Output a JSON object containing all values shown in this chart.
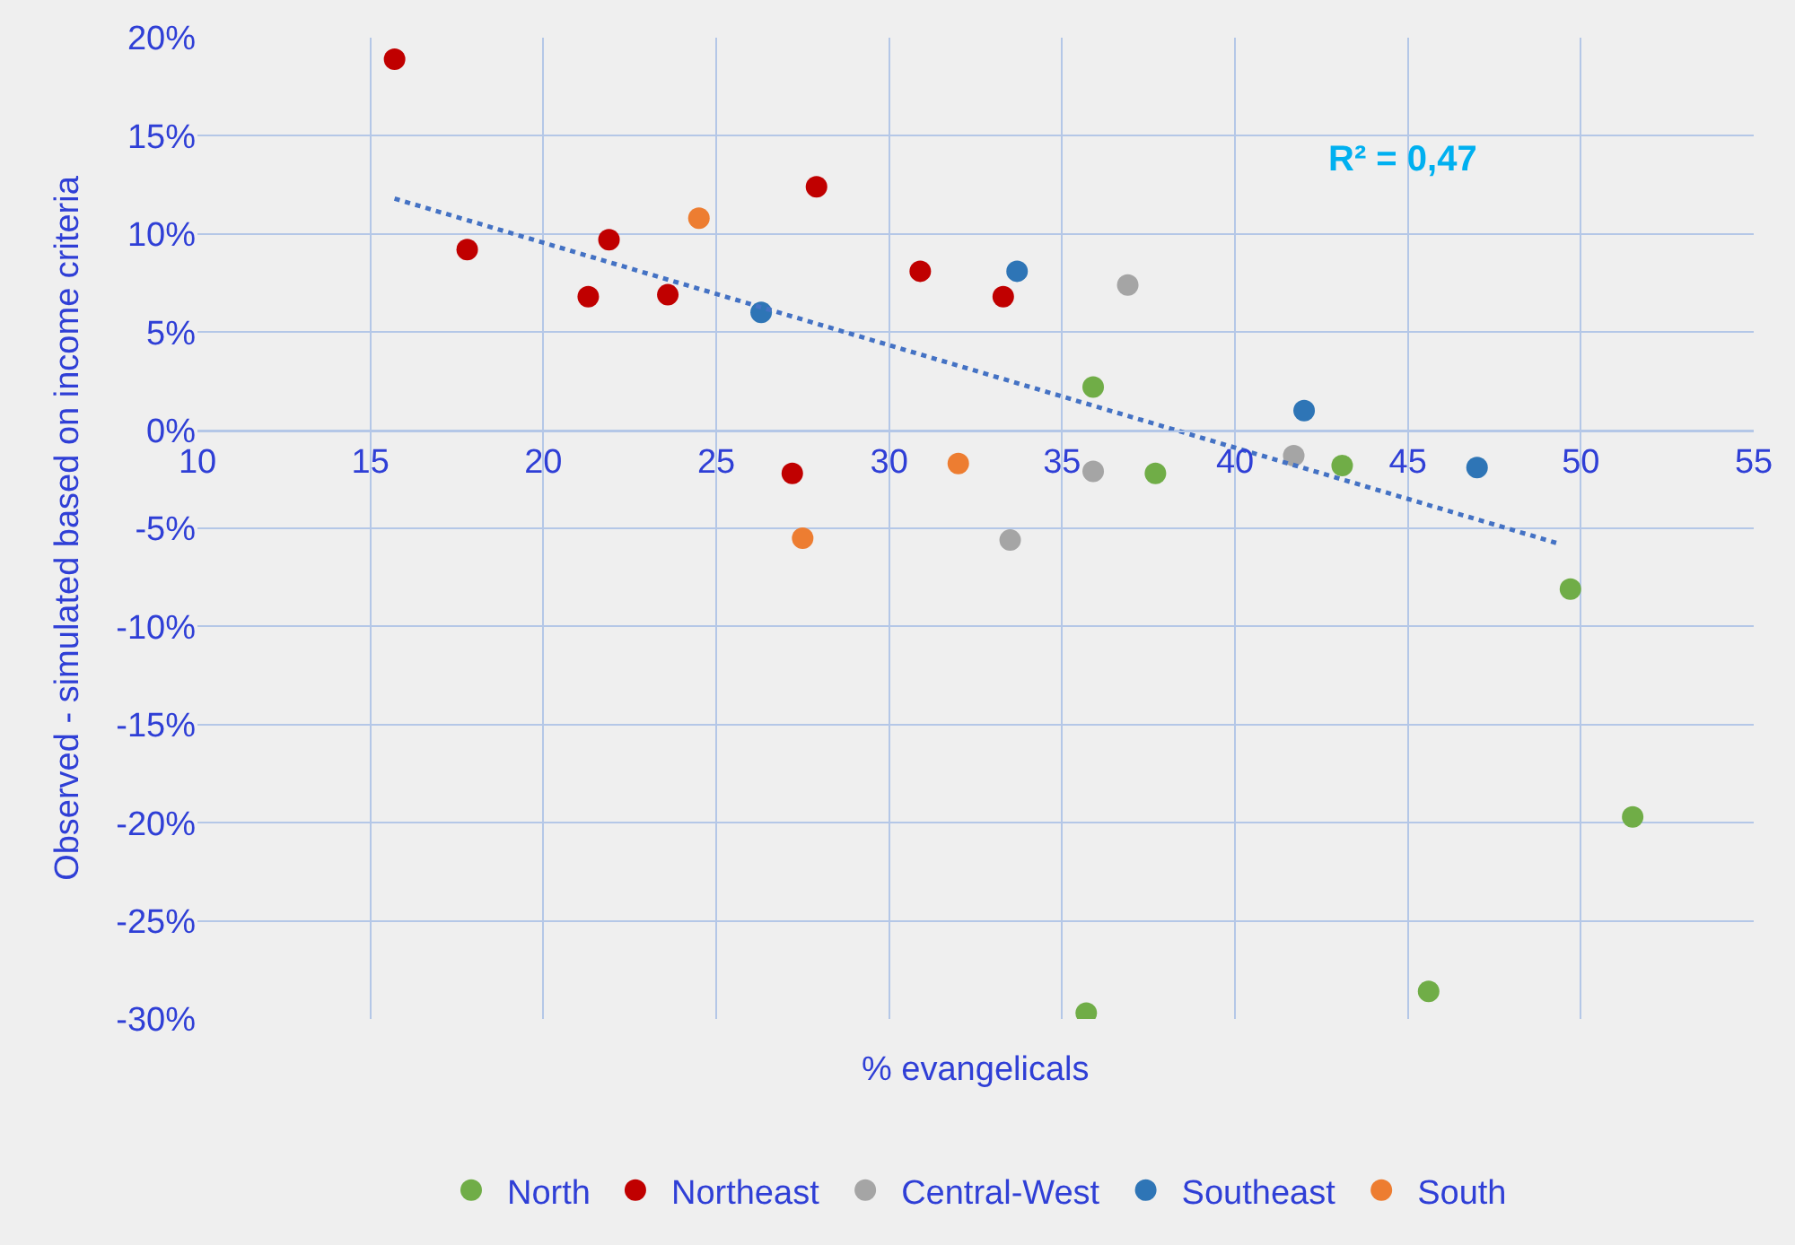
{
  "chart_data": {
    "type": "scatter",
    "xlabel": "% evangelicals",
    "ylabel": "Observed - simulated based on income criteria",
    "xlim": [
      10,
      55
    ],
    "xticks": [
      10,
      15,
      20,
      25,
      30,
      35,
      40,
      45,
      50,
      55
    ],
    "ylim": [
      -30,
      20
    ],
    "yticks": [
      {
        "value": -30,
        "label": "-30%"
      },
      {
        "value": -25,
        "label": "-25%"
      },
      {
        "value": -20,
        "label": "-20%"
      },
      {
        "value": -15,
        "label": "-15%"
      },
      {
        "value": -10,
        "label": "-10%"
      },
      {
        "value": -5,
        "label": "-5%"
      },
      {
        "value": 0,
        "label": "0%"
      },
      {
        "value": 5,
        "label": "5%"
      },
      {
        "value": 10,
        "label": "10%"
      },
      {
        "value": 15,
        "label": "15%"
      },
      {
        "value": 20,
        "label": "20%"
      }
    ],
    "grid": true,
    "legend": "bottom",
    "marker": "circle",
    "series": [
      {
        "name": "North",
        "color": "#70ad47",
        "x": [
          35.9,
          37.7,
          43.1,
          49.7,
          51.5,
          45.6,
          35.7
        ],
        "values": [
          2.2,
          -2.2,
          -1.8,
          -8.1,
          -19.7,
          -28.6,
          -29.7
        ]
      },
      {
        "name": "Northeast",
        "color": "#c00000",
        "x": [
          15.7,
          17.8,
          21.3,
          21.9,
          23.6,
          27.2,
          27.9,
          30.9,
          33.3
        ],
        "values": [
          18.9,
          9.2,
          6.8,
          9.7,
          6.9,
          -2.2,
          12.4,
          8.1,
          6.8
        ]
      },
      {
        "name": "Central-West",
        "color": "#a5a5a5",
        "x": [
          36.9,
          35.9,
          33.5,
          41.7
        ],
        "values": [
          7.4,
          -2.1,
          -5.6,
          -1.3
        ]
      },
      {
        "name": "Southeast",
        "color": "#2e75b6",
        "x": [
          26.3,
          33.7,
          42.0,
          47.0
        ],
        "values": [
          6.0,
          8.1,
          1.0,
          -1.9
        ]
      },
      {
        "name": "South",
        "color": "#ed7d31",
        "x": [
          24.5,
          27.5,
          32.0
        ],
        "values": [
          10.8,
          -5.5,
          -1.7
        ]
      },
      {
        "type": "line",
        "color": "#4472c4",
        "line_style": "dotted",
        "marker": "none",
        "x": [
          15.7,
          49.4
        ],
        "values": [
          11.8,
          -5.8
        ]
      }
    ],
    "annotations": [
      "R² = 0,47"
    ]
  }
}
